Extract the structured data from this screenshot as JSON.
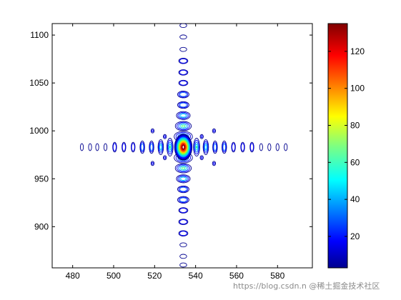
{
  "chart_data": {
    "type": "contour",
    "title": "",
    "xlabel": "",
    "ylabel": "",
    "xlim": [
      470,
      597
    ],
    "ylim": [
      857,
      1112
    ],
    "xticks": [
      480,
      500,
      520,
      540,
      560,
      580
    ],
    "yticks": [
      900,
      950,
      1000,
      1050,
      1100
    ],
    "colormap": "jet",
    "colorbar": {
      "range": [
        3,
        135
      ],
      "ticks": [
        20,
        40,
        60,
        80,
        100,
        120
      ]
    },
    "peak": {
      "x": 534,
      "y": 983,
      "value": 135
    },
    "contour_colors": [
      "#00008f",
      "#0000ff",
      "#0060ff",
      "#00c8ff",
      "#40ff80",
      "#d0ff00",
      "#ffb000",
      "#ff3000",
      "#a00000"
    ],
    "horizontal_lobes": [
      {
        "x": 484.5,
        "level": 1
      },
      {
        "x": 488.5,
        "level": 1
      },
      {
        "x": 492,
        "level": 1
      },
      {
        "x": 496,
        "level": 1
      },
      {
        "x": 500.5,
        "level": 2
      },
      {
        "x": 505,
        "level": 2
      },
      {
        "x": 509.5,
        "level": 2
      },
      {
        "x": 514,
        "level": 3
      },
      {
        "x": 518.5,
        "level": 3
      },
      {
        "x": 523,
        "level": 4
      },
      {
        "x": 527.5,
        "level": 5
      },
      {
        "x": 540.5,
        "level": 5
      },
      {
        "x": 545,
        "level": 4
      },
      {
        "x": 549.5,
        "level": 3
      },
      {
        "x": 554,
        "level": 3
      },
      {
        "x": 558.5,
        "level": 2
      },
      {
        "x": 563,
        "level": 2
      },
      {
        "x": 567.5,
        "level": 2
      },
      {
        "x": 572,
        "level": 1
      },
      {
        "x": 576,
        "level": 1
      },
      {
        "x": 580,
        "level": 1
      },
      {
        "x": 584,
        "level": 1
      }
    ],
    "vertical_lobes": [
      {
        "y": 1110,
        "level": 1
      },
      {
        "y": 1098,
        "level": 1
      },
      {
        "y": 1085,
        "level": 1
      },
      {
        "y": 1073,
        "level": 2
      },
      {
        "y": 1061,
        "level": 2
      },
      {
        "y": 1050,
        "level": 2
      },
      {
        "y": 1038,
        "level": 3
      },
      {
        "y": 1027,
        "level": 3
      },
      {
        "y": 1016,
        "level": 4
      },
      {
        "y": 1005,
        "level": 5
      },
      {
        "y": 994,
        "level": 6
      },
      {
        "y": 972,
        "level": 6
      },
      {
        "y": 961,
        "level": 5
      },
      {
        "y": 950,
        "level": 4
      },
      {
        "y": 939,
        "level": 3
      },
      {
        "y": 928,
        "level": 3
      },
      {
        "y": 917,
        "level": 2
      },
      {
        "y": 905,
        "level": 2
      },
      {
        "y": 893,
        "level": 2
      },
      {
        "y": 881,
        "level": 1
      },
      {
        "y": 869,
        "level": 1
      },
      {
        "y": 860,
        "level": 1
      }
    ],
    "corner_lobes": [
      {
        "x": 525,
        "y": 994
      },
      {
        "x": 543,
        "y": 994
      },
      {
        "x": 525,
        "y": 972
      },
      {
        "x": 543,
        "y": 972
      },
      {
        "x": 519,
        "y": 1000
      },
      {
        "x": 549,
        "y": 1000
      },
      {
        "x": 519,
        "y": 966
      },
      {
        "x": 549,
        "y": 966
      }
    ]
  },
  "watermark": "https://blog.csdn.n @稀土掘金技术社区"
}
